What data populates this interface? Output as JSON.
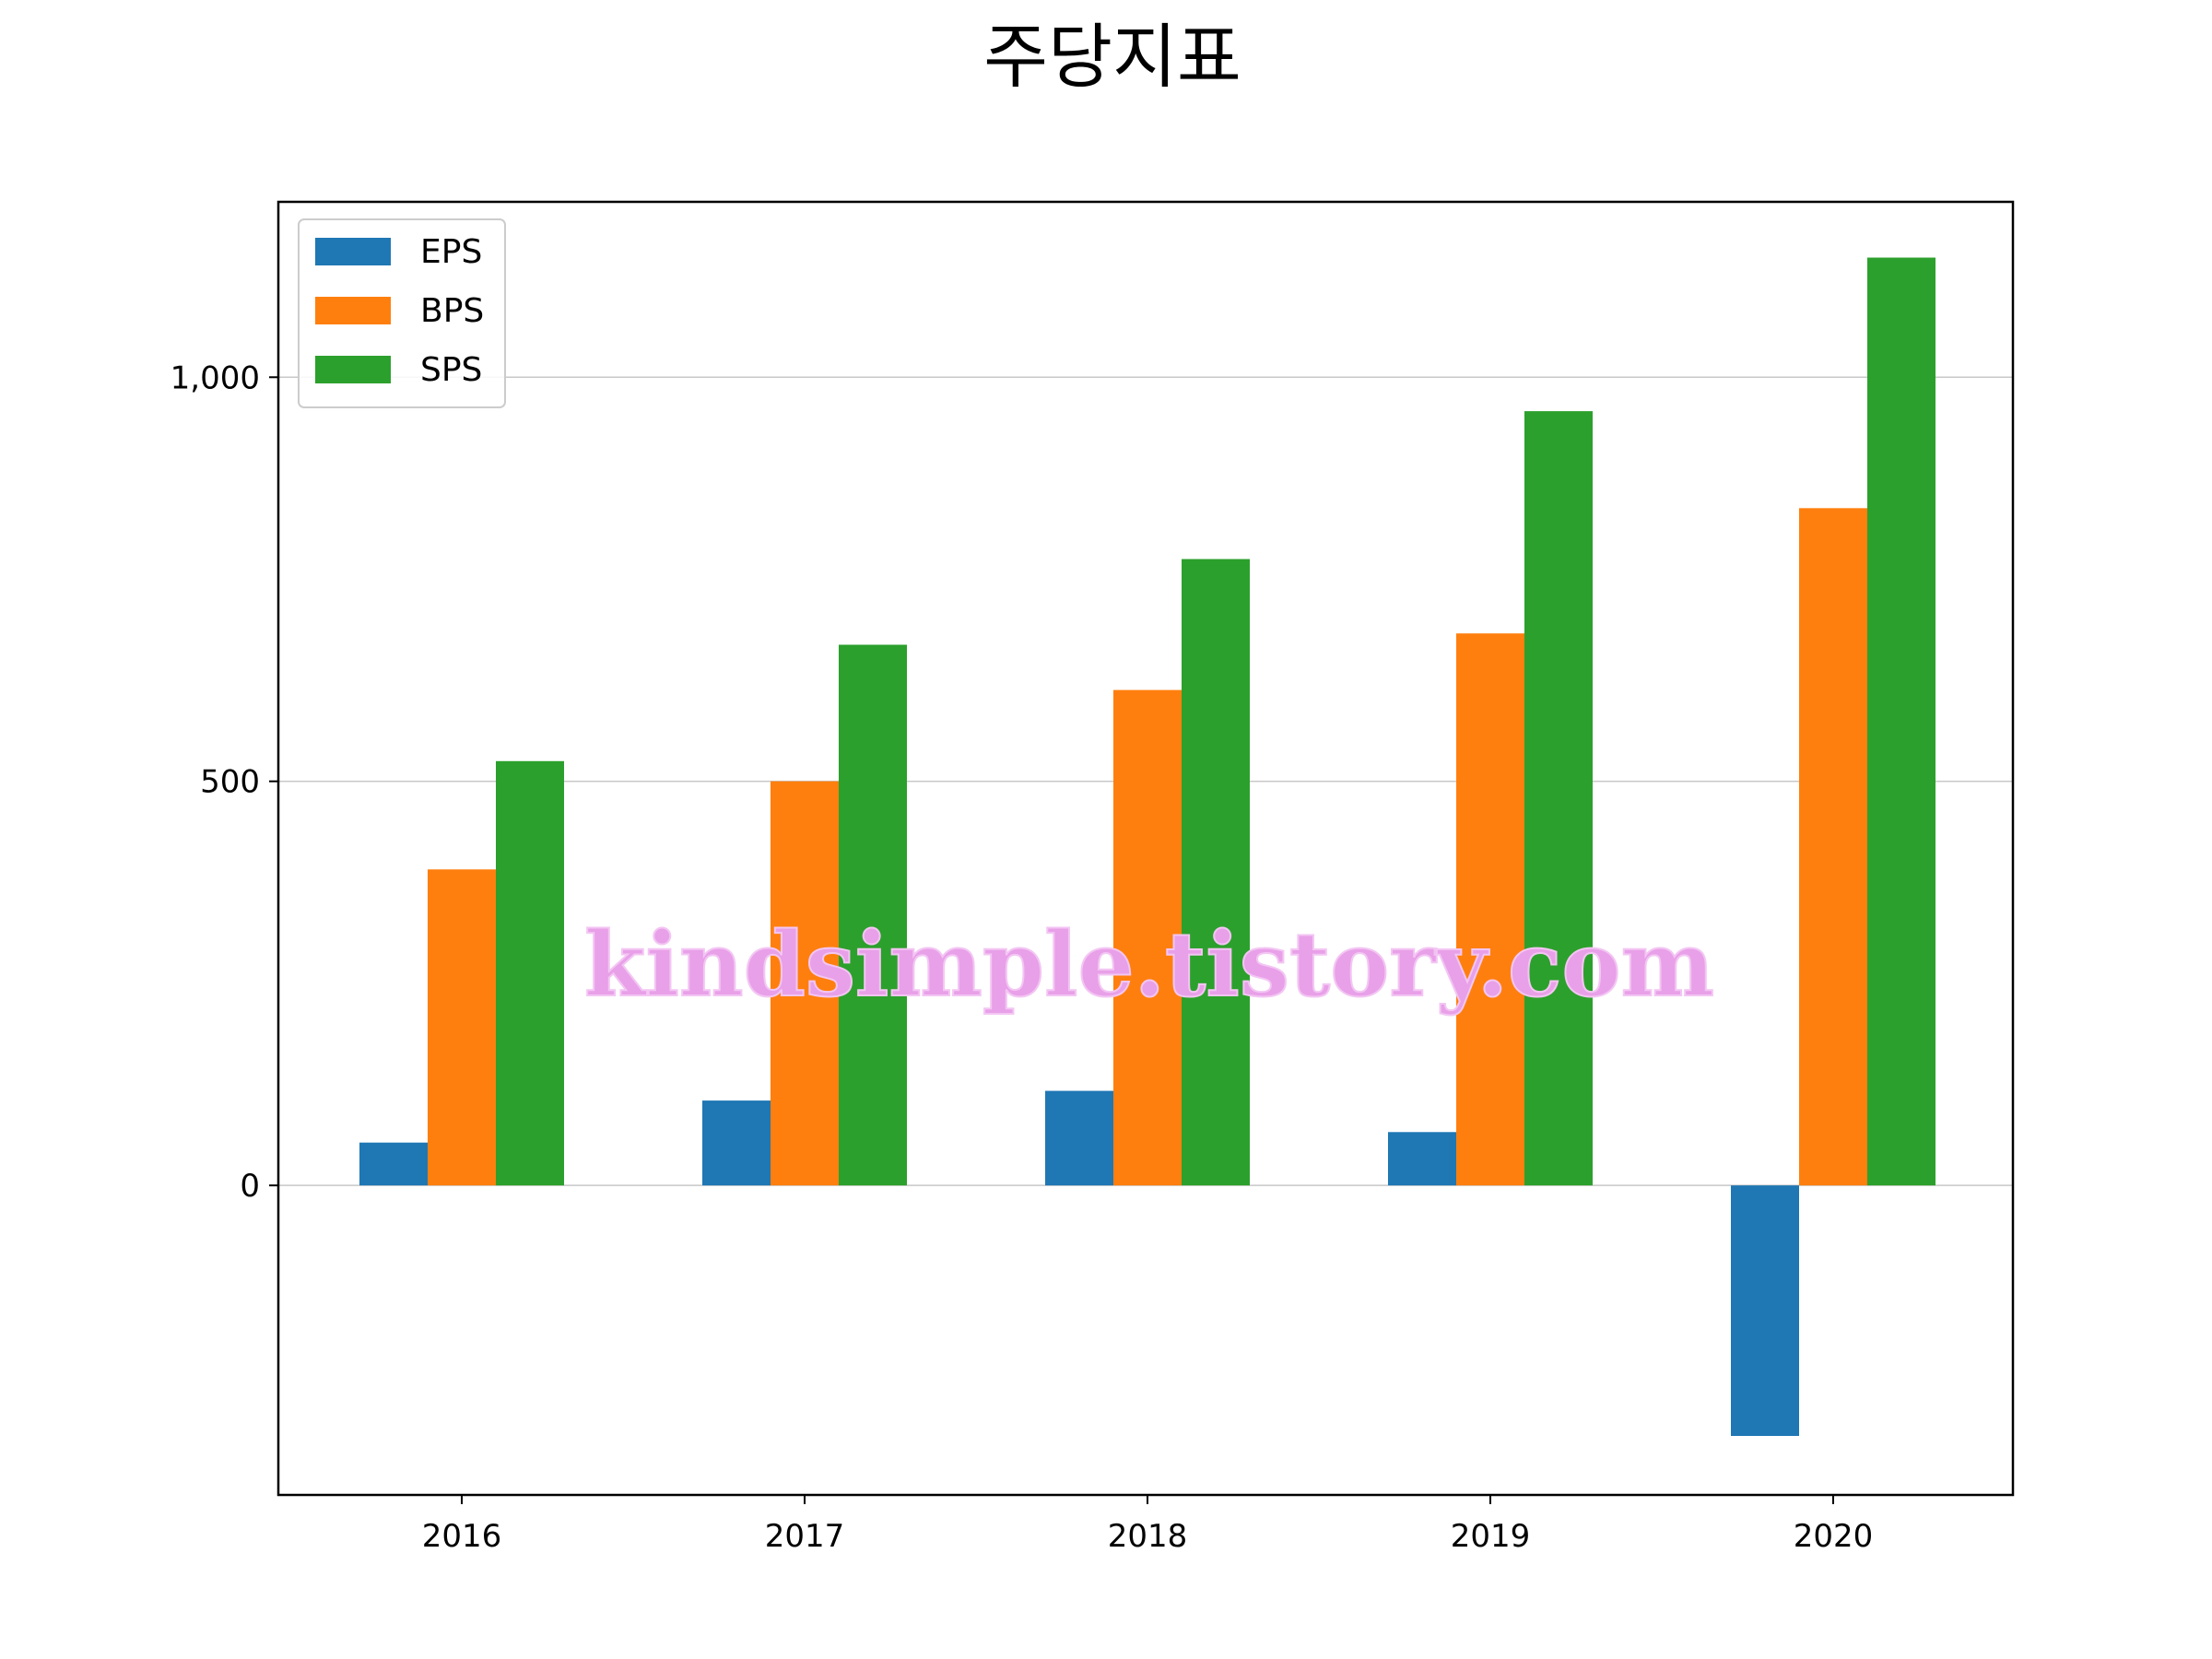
{
  "chart_data": {
    "type": "bar",
    "title": "주당지표",
    "categories": [
      "2016",
      "2017",
      "2018",
      "2019",
      "2020"
    ],
    "series": [
      {
        "name": "EPS",
        "color": "#1f77b4",
        "values": [
          53,
          105,
          117,
          66,
          -310
        ]
      },
      {
        "name": "BPS",
        "color": "#ff7f0e",
        "values": [
          391,
          500,
          613,
          683,
          838
        ]
      },
      {
        "name": "SPS",
        "color": "#2ca02c",
        "values": [
          525,
          669,
          775,
          958,
          1148
        ]
      }
    ],
    "ylim": [
      -383,
      1217
    ],
    "yticks": [
      0,
      500,
      1000
    ],
    "ytick_labels": [
      "0",
      "500",
      "1,000"
    ],
    "grid": "y",
    "legend": "top-left",
    "xlabel": "",
    "ylabel": ""
  },
  "watermark": "kindsimple.tistory.com"
}
